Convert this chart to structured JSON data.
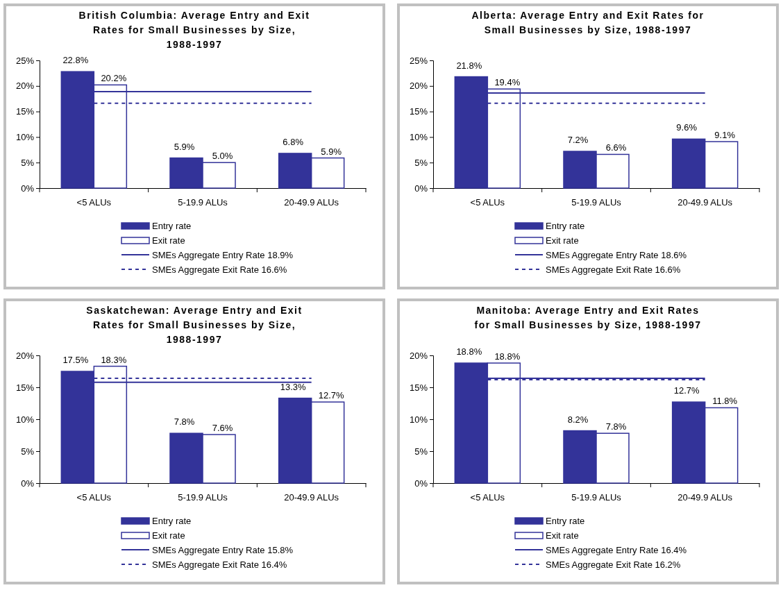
{
  "chart_data": [
    {
      "type": "bar",
      "title": "British Columbia: Average Entry and Exit Rates  for Small Businesses by Size, 1988-1997",
      "categories": [
        "<5 ALUs",
        "5-19.9 ALUs",
        "20-49.9 ALUs"
      ],
      "ylim": [
        0,
        25
      ],
      "yticks": [
        {
          "value": 0,
          "label": "0%"
        },
        {
          "value": 5,
          "label": "5%"
        },
        {
          "value": 10,
          "label": "10%"
        },
        {
          "value": 15,
          "label": "15%"
        },
        {
          "value": 20,
          "label": "20%"
        },
        {
          "value": 25,
          "label": "25%"
        }
      ],
      "legend": "bottom",
      "series": [
        {
          "name": "Entry rate",
          "color": "#333399",
          "values": [
            22.8,
            5.9,
            6.8
          ],
          "value_labels": [
            "22.8%",
            "5.9%",
            "6.8%"
          ]
        },
        {
          "name": "Exit rate",
          "color": "#ffffff",
          "values": [
            20.2,
            5.0,
            5.9
          ],
          "value_labels": [
            "20.2%",
            "5.0%",
            "5.9%"
          ]
        },
        {
          "name": "SMEs Aggregate Entry Rate 18.9%",
          "type": "line",
          "line_style": "solid",
          "color": "#333399",
          "values": [
            18.9,
            18.9,
            18.9
          ]
        },
        {
          "name": "SMEs Aggregate Exit Rate 16.6%",
          "type": "line",
          "line_style": "dashed",
          "color": "#333399",
          "values": [
            16.6,
            16.6,
            16.6
          ]
        }
      ]
    },
    {
      "type": "bar",
      "title": "Alberta: Average Entry and Exit Rates for Small Businesses by Size, 1988-1997",
      "categories": [
        "<5 ALUs",
        "5-19.9 ALUs",
        "20-49.9 ALUs"
      ],
      "ylim": [
        0,
        25
      ],
      "yticks": [
        {
          "value": 0,
          "label": "0%"
        },
        {
          "value": 5,
          "label": "5%"
        },
        {
          "value": 10,
          "label": "10%"
        },
        {
          "value": 15,
          "label": "15%"
        },
        {
          "value": 20,
          "label": "20%"
        },
        {
          "value": 25,
          "label": "25%"
        }
      ],
      "legend": "bottom",
      "series": [
        {
          "name": "Entry rate",
          "color": "#333399",
          "values": [
            21.8,
            7.2,
            9.6
          ],
          "value_labels": [
            "21.8%",
            "7.2%",
            "9.6%"
          ]
        },
        {
          "name": "Exit rate",
          "color": "#ffffff",
          "values": [
            19.4,
            6.6,
            9.1
          ],
          "value_labels": [
            "19.4%",
            "6.6%",
            "9.1%"
          ]
        },
        {
          "name": "SMEs Aggregate Entry Rate 18.6%",
          "type": "line",
          "line_style": "solid",
          "color": "#333399",
          "values": [
            18.6,
            18.6,
            18.6
          ]
        },
        {
          "name": "SMEs Aggregate Exit Rate 16.6%",
          "type": "line",
          "line_style": "dashed",
          "color": "#333399",
          "values": [
            16.6,
            16.6,
            16.6
          ]
        }
      ]
    },
    {
      "type": "bar",
      "title": "Saskatchewan: Average Entry and Exit Rates  for Small Businesses by Size, 1988-1997",
      "categories": [
        "<5 ALUs",
        "5-19.9 ALUs",
        "20-49.9 ALUs"
      ],
      "ylim": [
        0,
        20
      ],
      "yticks": [
        {
          "value": 0,
          "label": "0%"
        },
        {
          "value": 5,
          "label": "5%"
        },
        {
          "value": 10,
          "label": "10%"
        },
        {
          "value": 15,
          "label": "15%"
        },
        {
          "value": 20,
          "label": "20%"
        }
      ],
      "legend": "bottom",
      "series": [
        {
          "name": "Entry rate",
          "color": "#333399",
          "values": [
            17.5,
            7.8,
            13.3
          ],
          "value_labels": [
            "17.5%",
            "7.8%",
            "13.3%"
          ]
        },
        {
          "name": "Exit rate",
          "color": "#ffffff",
          "values": [
            18.3,
            7.6,
            12.7
          ],
          "value_labels": [
            "18.3%",
            "7.6%",
            "12.7%"
          ]
        },
        {
          "name": "SMEs Aggregate Entry Rate 15.8%",
          "type": "line",
          "line_style": "solid",
          "color": "#333399",
          "values": [
            15.8,
            15.8,
            15.8
          ]
        },
        {
          "name": "SMEs Aggregate Exit Rate 16.4%",
          "type": "line",
          "line_style": "dashed",
          "color": "#333399",
          "values": [
            16.4,
            16.4,
            16.4
          ]
        }
      ]
    },
    {
      "type": "bar",
      "title": "Manitoba: Average Entry and Exit Rates for Small Businesses by Size, 1988-1997",
      "categories": [
        "<5 ALUs",
        "5-19.9 ALUs",
        "20-49.9 ALUs"
      ],
      "ylim": [
        0,
        20
      ],
      "yticks": [
        {
          "value": 0,
          "label": "0%"
        },
        {
          "value": 5,
          "label": "5%"
        },
        {
          "value": 10,
          "label": "10%"
        },
        {
          "value": 15,
          "label": "15%"
        },
        {
          "value": 20,
          "label": "20%"
        }
      ],
      "legend": "bottom",
      "series": [
        {
          "name": "Entry rate",
          "color": "#333399",
          "values": [
            18.8,
            8.2,
            12.7
          ],
          "value_labels": [
            "18.8%",
            "8.2%",
            "12.7%"
          ]
        },
        {
          "name": "Exit rate",
          "color": "#ffffff",
          "values": [
            18.8,
            7.8,
            11.8
          ],
          "value_labels": [
            "18.8%",
            "7.8%",
            "11.8%"
          ]
        },
        {
          "name": "SMEs Aggregate Entry Rate 16.4%",
          "type": "line",
          "line_style": "solid",
          "color": "#333399",
          "values": [
            16.4,
            16.4,
            16.4
          ]
        },
        {
          "name": "SMEs Aggregate Exit Rate 16.2%",
          "type": "line",
          "line_style": "dashed",
          "color": "#333399",
          "values": [
            16.2,
            16.2,
            16.2
          ]
        }
      ]
    }
  ]
}
